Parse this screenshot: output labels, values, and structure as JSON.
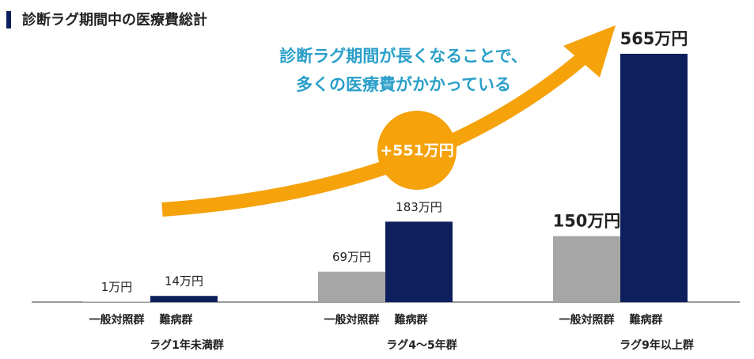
{
  "chart_data": {
    "type": "bar",
    "title": "診断ラグ期間中の医療費総計",
    "annotations": [
      "診断ラグ期間が長くなることで、",
      "多くの医療費がかかっている",
      "+551万円"
    ],
    "categories": [
      "ラグ1年未満群",
      "ラグ4～5年群",
      "ラグ9年以上群"
    ],
    "series": [
      {
        "name": "一般対照群",
        "color": "#a6a6a6",
        "values": [
          1,
          69,
          150
        ],
        "value_labels": [
          "1万円",
          "69万円",
          "150万円"
        ]
      },
      {
        "name": "難病群",
        "color": "#0d1f5c",
        "values": [
          14,
          183,
          565
        ],
        "value_labels": [
          "14万円",
          "183万円",
          "565万円"
        ]
      }
    ]
  }
}
